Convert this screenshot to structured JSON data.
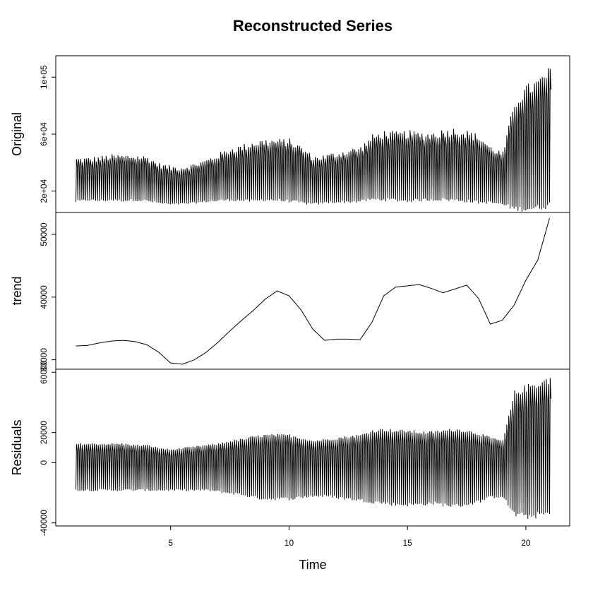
{
  "chart_data": {
    "type": "line",
    "title": "Reconstructed Series",
    "xlabel": "Time",
    "xlim": [
      0.15,
      21.85
    ],
    "xticks": [
      5,
      10,
      15,
      20
    ],
    "xtick_labels": [
      "5",
      "10",
      "15",
      "20"
    ],
    "panels": [
      {
        "name": "original",
        "ylabel": "Original",
        "ylim": [
          5000,
          115000
        ],
        "yticks": [
          20000,
          60000,
          100000
        ],
        "ytick_labels": [
          "2e+04",
          "6e+04",
          "1e+05"
        ],
        "x": [
          1,
          1.5,
          2,
          2.5,
          3,
          3.5,
          4,
          4.5,
          5,
          5.5,
          6,
          6.5,
          7,
          7.5,
          8,
          8.5,
          9,
          9.5,
          10,
          10.5,
          11,
          11.5,
          12,
          12.5,
          13,
          13.5,
          14,
          14.5,
          15,
          15.5,
          16,
          16.5,
          17,
          17.5,
          18,
          18.5,
          19,
          19.5,
          20,
          20.5,
          21
        ],
        "peaks": [
          44000,
          44000,
          45000,
          46000,
          46000,
          46000,
          45000,
          40000,
          38000,
          38000,
          40000,
          43000,
          47000,
          51000,
          53000,
          56000,
          57000,
          57000,
          57000,
          52000,
          45000,
          46000,
          48000,
          50000,
          52000,
          60000,
          63000,
          62000,
          63000,
          62000,
          62000,
          64000,
          65000,
          63000,
          60000,
          52000,
          48000,
          85000,
          95000,
          100000,
          108000
        ],
        "troughs": [
          12000,
          13000,
          12500,
          13000,
          12500,
          13000,
          12500,
          11000,
          10000,
          10500,
          11000,
          12000,
          12500,
          13000,
          12500,
          12000,
          13000,
          12500,
          12000,
          11000,
          10000,
          11000,
          11500,
          11500,
          12000,
          13000,
          13000,
          12500,
          12000,
          12500,
          13000,
          13000,
          12500,
          12000,
          11000,
          11000,
          10000,
          6000,
          5500,
          6000,
          8000
        ]
      },
      {
        "name": "trend",
        "ylabel": "trend",
        "ylim": [
          28500,
          53500
        ],
        "yticks": [
          30000,
          40000,
          50000
        ],
        "ytick_labels": [
          "30000",
          "40000",
          "50000"
        ],
        "x": [
          1,
          1.5,
          2,
          2.5,
          3,
          3.5,
          4,
          4.5,
          5,
          5.5,
          6,
          6.5,
          7,
          7.5,
          8,
          8.5,
          9,
          9.5,
          10,
          10.5,
          11,
          11.5,
          12,
          12.5,
          13,
          13.5,
          14,
          14.5,
          15,
          15.5,
          16,
          16.5,
          17,
          17.5,
          18,
          18.5,
          19,
          19.5,
          20,
          20.5,
          21
        ],
        "values": [
          32200,
          32300,
          32700,
          33000,
          33100,
          32900,
          32400,
          31200,
          29500,
          29300,
          30000,
          31200,
          32800,
          34600,
          36300,
          37900,
          39700,
          41000,
          40200,
          38000,
          34900,
          33100,
          33300,
          33300,
          33200,
          36000,
          40200,
          41600,
          41800,
          42000,
          41400,
          40700,
          41300,
          41900,
          39800,
          35700,
          36300,
          38700,
          42700,
          45900,
          52600
        ]
      },
      {
        "name": "residuals",
        "ylabel": "Residuals",
        "ylim": [
          -42000,
          62000
        ],
        "yticks": [
          -40000,
          0,
          20000,
          60000
        ],
        "ytick_labels": [
          "-40000",
          "0",
          "20000",
          "60000"
        ],
        "x": [
          1,
          1.5,
          2,
          2.5,
          3,
          3.5,
          4,
          4.5,
          5,
          5.5,
          6,
          6.5,
          7,
          7.5,
          8,
          8.5,
          9,
          9.5,
          10,
          10.5,
          11,
          11.5,
          12,
          12.5,
          13,
          13.5,
          14,
          14.5,
          15,
          15.5,
          16,
          16.5,
          17,
          17.5,
          18,
          18.5,
          19,
          19.5,
          20,
          20.5,
          21
        ],
        "peaks": [
          13000,
          13000,
          13000,
          13000,
          13000,
          12000,
          12000,
          10000,
          9000,
          10000,
          11000,
          12000,
          13000,
          15000,
          16000,
          18000,
          19000,
          19000,
          19000,
          17000,
          15000,
          16000,
          17000,
          18000,
          19000,
          22000,
          23000,
          22000,
          22000,
          21000,
          21000,
          22000,
          23000,
          22000,
          20000,
          17000,
          15000,
          48000,
          52000,
          55000,
          58000
        ],
        "troughs": [
          -19000,
          -19000,
          -19000,
          -19000,
          -19000,
          -19000,
          -19000,
          -19000,
          -19000,
          -19000,
          -19000,
          -19000,
          -20000,
          -21000,
          -22000,
          -24000,
          -25000,
          -25000,
          -25000,
          -24000,
          -23000,
          -23000,
          -24000,
          -25000,
          -26000,
          -27000,
          -28000,
          -29000,
          -29000,
          -29000,
          -28000,
          -29000,
          -30000,
          -29000,
          -27000,
          -24000,
          -23000,
          -36000,
          -38000,
          -37000,
          -36000
        ]
      }
    ]
  }
}
